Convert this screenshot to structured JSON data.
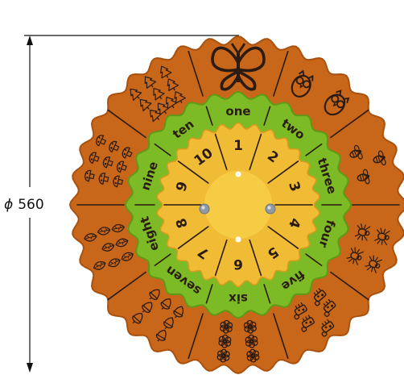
{
  "dimension": {
    "symbol": "ϕ",
    "value": "560"
  },
  "colors": {
    "outer_ring": "#c8661a",
    "outer_ring_edge": "#a9520f",
    "middle_ring": "#7cbb25",
    "middle_ring_edge": "#5e9a16",
    "inner_ring": "#f0bb35",
    "center_disc": "#f7cc45",
    "ink": "#2b1b10",
    "bolt": "#9aa6b2",
    "dot": "#ffffff"
  },
  "wheel": {
    "words": [
      "one",
      "two",
      "three",
      "four",
      "five",
      "six",
      "seven",
      "eight",
      "nine",
      "ten"
    ],
    "numbers": [
      "1",
      "2",
      "3",
      "4",
      "5",
      "6",
      "7",
      "8",
      "9",
      "10"
    ],
    "pictures": [
      {
        "icon": "butterfly-icon",
        "count": 1
      },
      {
        "icon": "owl-icon",
        "count": 2
      },
      {
        "icon": "bee-icon",
        "count": 3
      },
      {
        "icon": "spider-icon",
        "count": 4
      },
      {
        "icon": "cow-icon",
        "count": 5
      },
      {
        "icon": "flower-icon",
        "count": 6
      },
      {
        "icon": "acorn-icon",
        "count": 7
      },
      {
        "icon": "leaf-icon",
        "count": 8
      },
      {
        "icon": "mushroom-icon",
        "count": 9
      },
      {
        "icon": "tree-icon",
        "count": 10
      }
    ]
  }
}
